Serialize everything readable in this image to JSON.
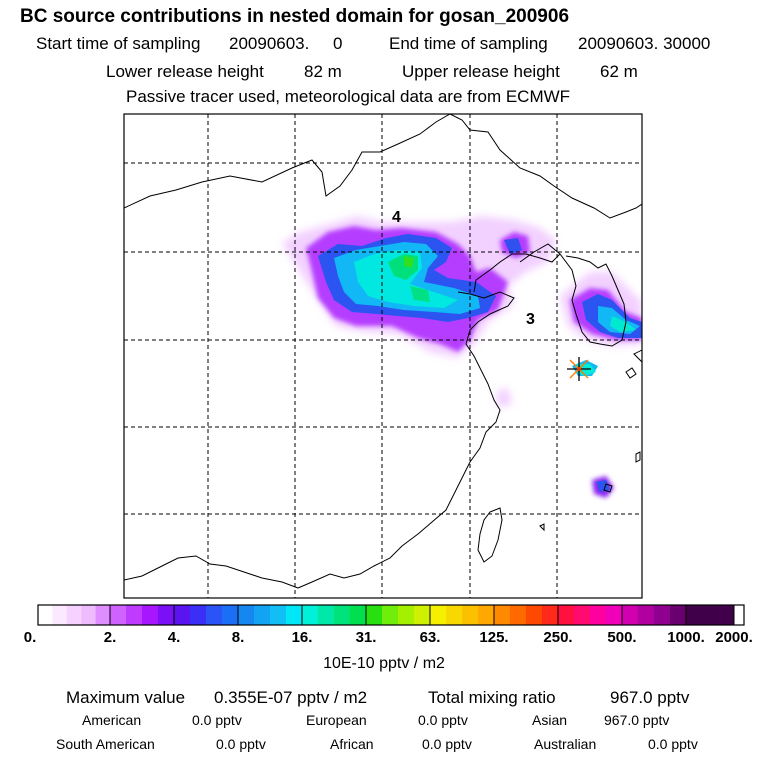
{
  "header": {
    "title": "BC  source contributions in nested domain for gosan_200906",
    "start_label": "Start time of sampling",
    "start_value": "20090603.     0",
    "end_label": "End time of sampling",
    "end_value": "20090603. 30000",
    "lower_label": "Lower release height",
    "lower_value": "82 m",
    "upper_label": "Upper release height",
    "upper_value": "62 m",
    "note": "Passive tracer used, meteorological data are from ECMWF"
  },
  "map": {
    "region_labels": [
      {
        "text": "4"
      },
      {
        "text": "3"
      }
    ],
    "colors": {
      "frame": "#000000",
      "grid": "#000000",
      "coast": "#000000"
    }
  },
  "legend": {
    "tick_labels": [
      "0.",
      "2.",
      "4.",
      "8.",
      "16.",
      "31.",
      "63.",
      "125.",
      "250.",
      "500.",
      "1000.",
      "2000."
    ],
    "swatches": [
      "#ffffff",
      "#fbe9ff",
      "#f5d2ff",
      "#eebbff",
      "#e08dff",
      "#d063ff",
      "#bf3bff",
      "#a716ff",
      "#7a10f5",
      "#5a14f0",
      "#3c2ff5",
      "#2c53f5",
      "#1a6ff5",
      "#1487f0",
      "#12a3f2",
      "#12bff5",
      "#00e8f8",
      "#00f0d8",
      "#00e8a8",
      "#00e27a",
      "#00e04f",
      "#28e010",
      "#70ee0a",
      "#a5f000",
      "#cff000",
      "#f5f000",
      "#f8d800",
      "#fbc000",
      "#ffa800",
      "#ff8a00",
      "#ff6a00",
      "#ff4800",
      "#ff2a1a",
      "#ff1040",
      "#ff0a70",
      "#ff00a0",
      "#f000b8",
      "#d000b0",
      "#b000a0",
      "#900090",
      "#6a0070",
      "#40004a"
    ],
    "unit": "10E-10 pptv / m2"
  },
  "footer": {
    "max_label": "Maximum value",
    "max_value": "0.355E-07 pptv / m2",
    "total_label": "Total mixing ratio",
    "total_value": "967.0 pptv",
    "regions": [
      {
        "name": "American",
        "value": "0.0 pptv"
      },
      {
        "name": "European",
        "value": "0.0 pptv"
      },
      {
        "name": "Asian",
        "value": "967.0 pptv"
      },
      {
        "name": "South American",
        "value": "0.0 pptv"
      },
      {
        "name": "African",
        "value": "0.0 pptv"
      },
      {
        "name": "Australian",
        "value": "0.0 pptv"
      }
    ]
  }
}
